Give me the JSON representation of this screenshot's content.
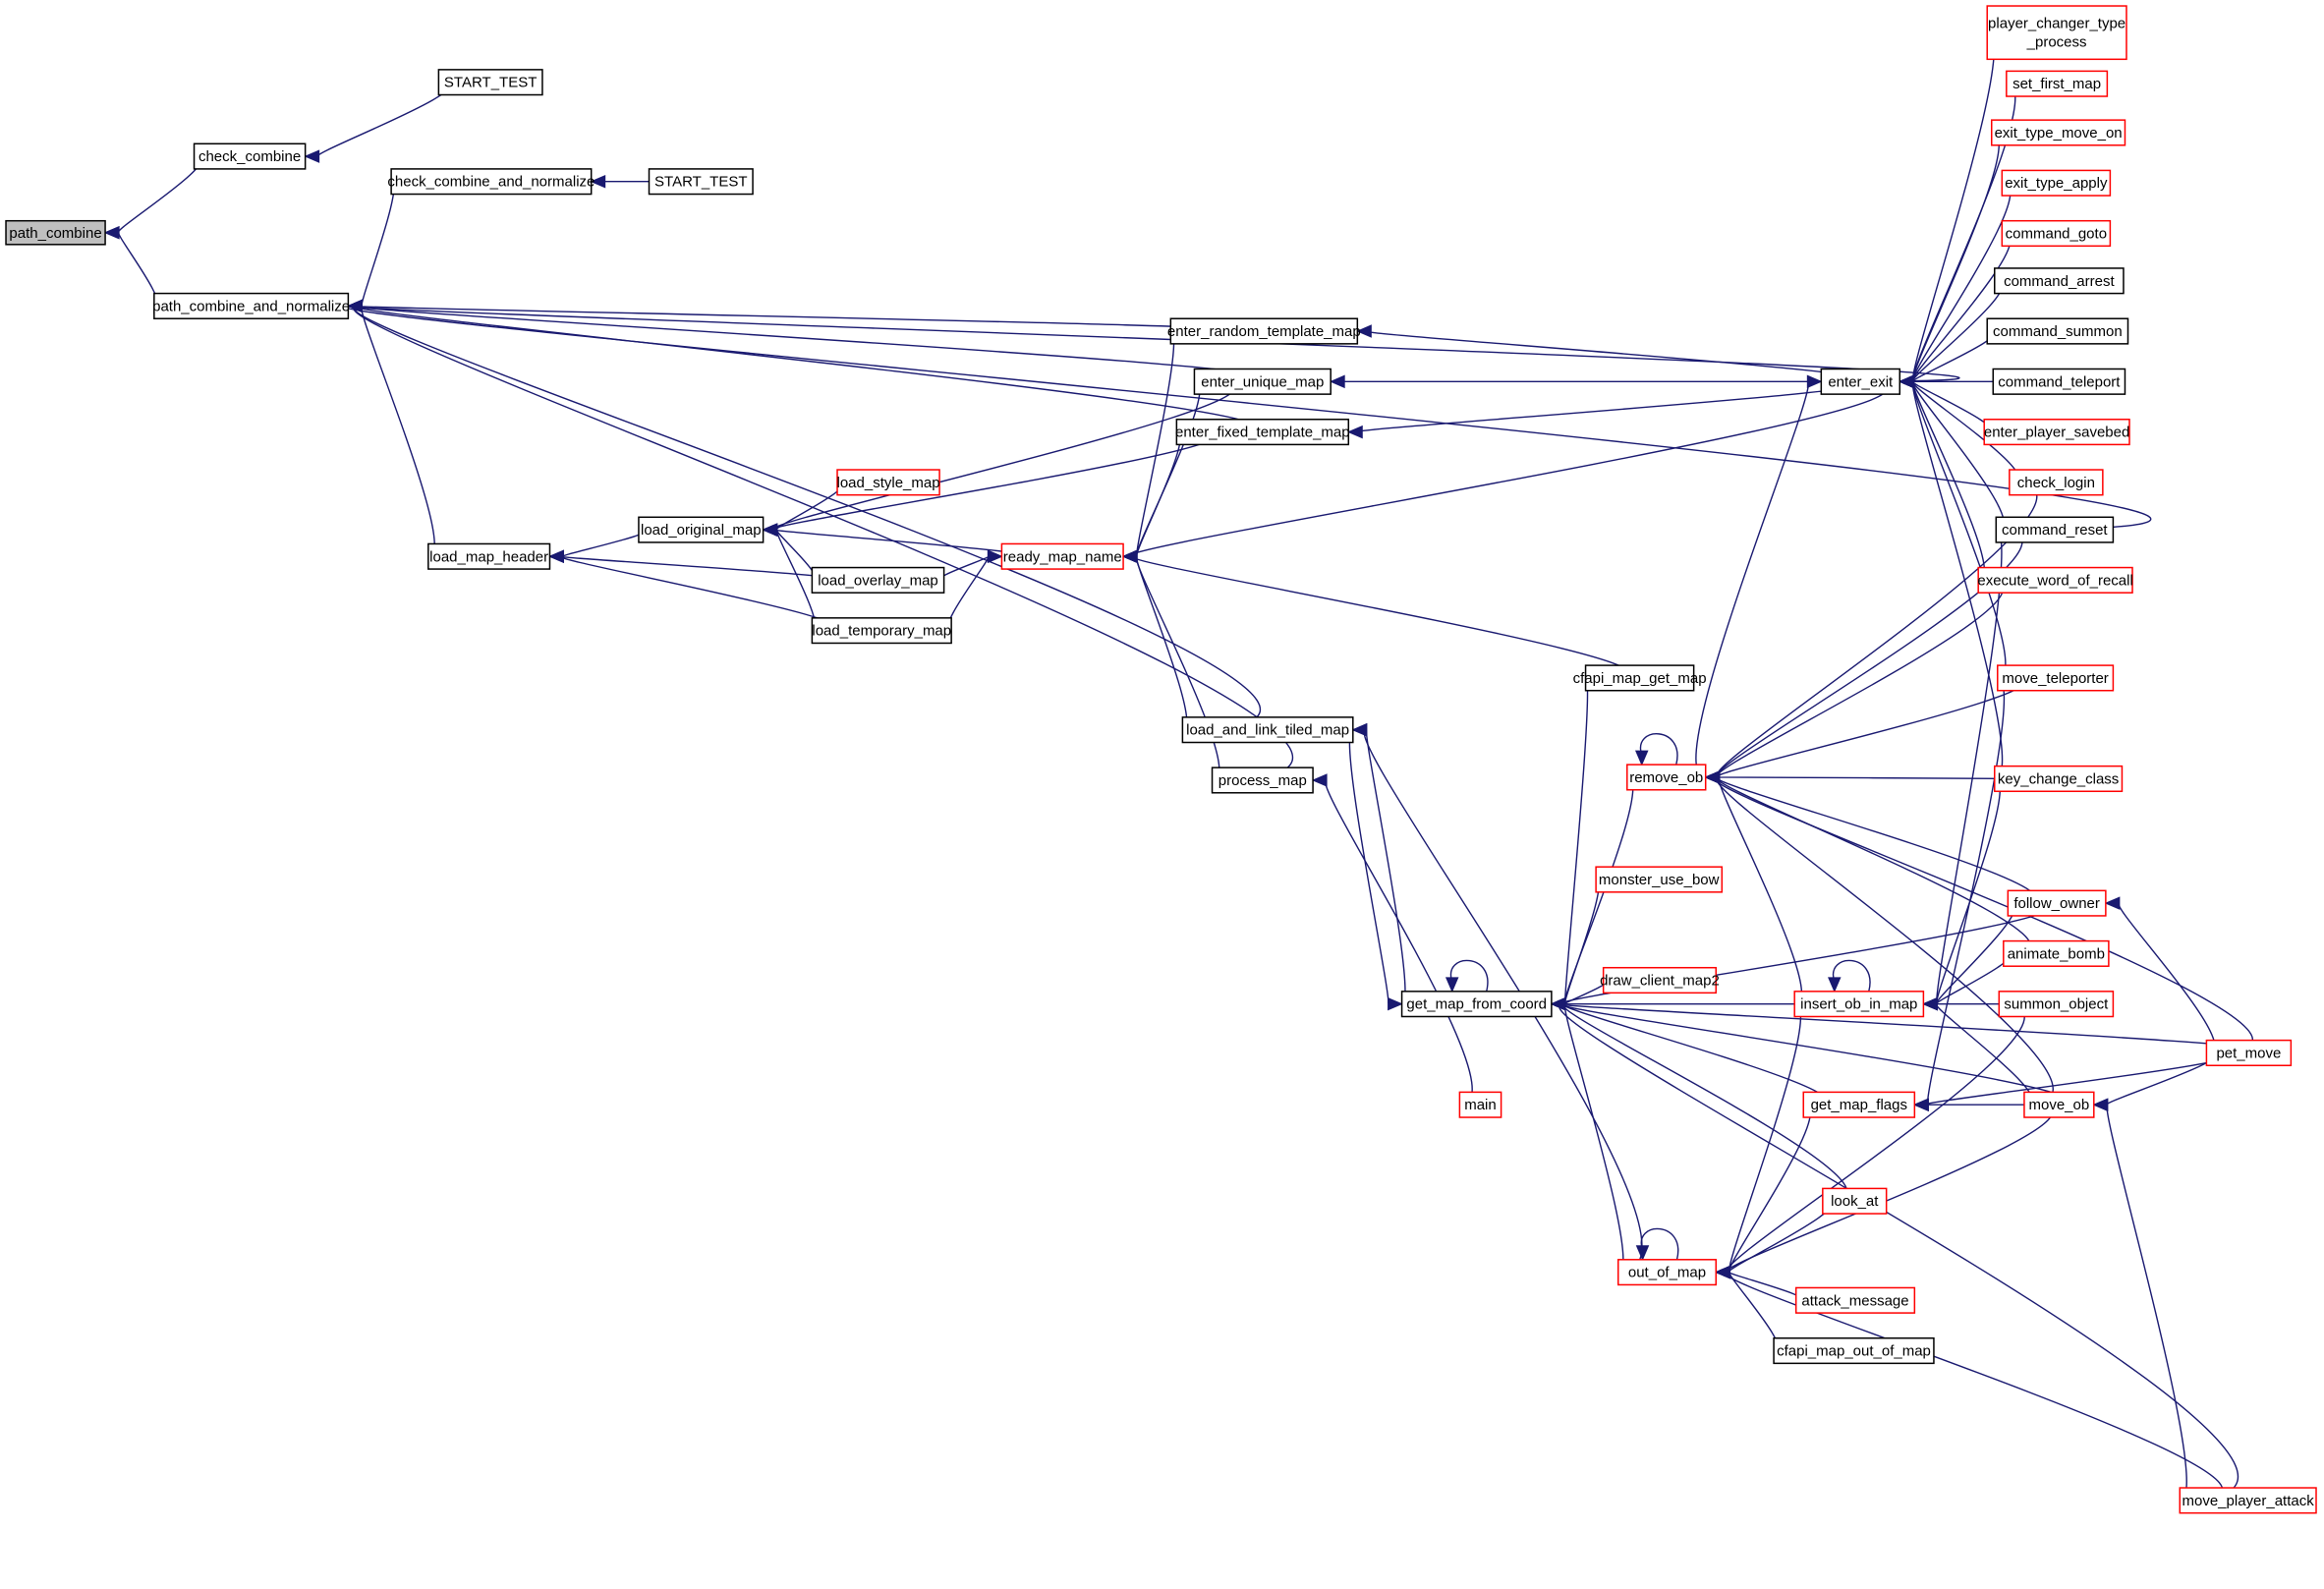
{
  "colors": {
    "edge": "#191970",
    "truncated_border": "#ff0000",
    "focus_fill": "#bfbfbf"
  },
  "nodes": [
    {
      "id": "path_combine",
      "label": "path_combine",
      "style": "highlight"
    },
    {
      "id": "check_combine",
      "label": "check_combine",
      "style": "black"
    },
    {
      "id": "start_test_a",
      "label": "START_TEST",
      "style": "black"
    },
    {
      "id": "pcan",
      "label": "path_combine_and_normalize",
      "style": "black"
    },
    {
      "id": "ccan",
      "label": "check_combine_and_normalize",
      "style": "black"
    },
    {
      "id": "start_test_b",
      "label": "START_TEST",
      "style": "black"
    },
    {
      "id": "load_map_header",
      "label": "load_map_header",
      "style": "black"
    },
    {
      "id": "load_original_map",
      "label": "load_original_map",
      "style": "black"
    },
    {
      "id": "load_style_map",
      "label": "load_style_map",
      "style": "red"
    },
    {
      "id": "load_overlay_map",
      "label": "load_overlay_map",
      "style": "black"
    },
    {
      "id": "load_temporary_map",
      "label": "load_temporary_map",
      "style": "black"
    },
    {
      "id": "ready_map_name",
      "label": "ready_map_name",
      "style": "red"
    },
    {
      "id": "enter_random_template_map",
      "label": "enter_random_template_map",
      "style": "black"
    },
    {
      "id": "enter_unique_map",
      "label": "enter_unique_map",
      "style": "black"
    },
    {
      "id": "enter_fixed_template_map",
      "label": "enter_fixed_template_map",
      "style": "black"
    },
    {
      "id": "load_and_link_tiled_map",
      "label": "load_and_link_tiled_map",
      "style": "black"
    },
    {
      "id": "process_map",
      "label": "process_map",
      "style": "black"
    },
    {
      "id": "main",
      "label": "main",
      "style": "red"
    },
    {
      "id": "cfapi_map_get_map",
      "label": "cfapi_map_get_map",
      "style": "black"
    },
    {
      "id": "enter_exit",
      "label": "enter_exit",
      "style": "black"
    },
    {
      "id": "player_changer_type_process",
      "label": "player_changer_type\n_process",
      "style": "red"
    },
    {
      "id": "set_first_map",
      "label": "set_first_map",
      "style": "red"
    },
    {
      "id": "exit_type_move_on",
      "label": "exit_type_move_on",
      "style": "red"
    },
    {
      "id": "exit_type_apply",
      "label": "exit_type_apply",
      "style": "red"
    },
    {
      "id": "command_goto",
      "label": "command_goto",
      "style": "red"
    },
    {
      "id": "command_arrest",
      "label": "command_arrest",
      "style": "black"
    },
    {
      "id": "command_summon",
      "label": "command_summon",
      "style": "black"
    },
    {
      "id": "command_teleport",
      "label": "command_teleport",
      "style": "black"
    },
    {
      "id": "enter_player_savebed",
      "label": "enter_player_savebed",
      "style": "red"
    },
    {
      "id": "check_login",
      "label": "check_login",
      "style": "red"
    },
    {
      "id": "command_reset",
      "label": "command_reset",
      "style": "black"
    },
    {
      "id": "execute_word_of_recall",
      "label": "execute_word_of_recall",
      "style": "red"
    },
    {
      "id": "move_teleporter",
      "label": "move_teleporter",
      "style": "red"
    },
    {
      "id": "key_change_class",
      "label": "key_change_class",
      "style": "red"
    },
    {
      "id": "follow_owner",
      "label": "follow_owner",
      "style": "red"
    },
    {
      "id": "animate_bomb",
      "label": "animate_bomb",
      "style": "red"
    },
    {
      "id": "summon_object",
      "label": "summon_object",
      "style": "red"
    },
    {
      "id": "pet_move",
      "label": "pet_move",
      "style": "red"
    },
    {
      "id": "move_ob",
      "label": "move_ob",
      "style": "red"
    },
    {
      "id": "move_player_attack",
      "label": "move_player_attack",
      "style": "red"
    },
    {
      "id": "remove_ob",
      "label": "remove_ob",
      "style": "red"
    },
    {
      "id": "monster_use_bow",
      "label": "monster_use_bow",
      "style": "red"
    },
    {
      "id": "draw_client_map2",
      "label": "draw_client_map2",
      "style": "red"
    },
    {
      "id": "get_map_from_coord",
      "label": "get_map_from_coord",
      "style": "black"
    },
    {
      "id": "insert_ob_in_map",
      "label": "insert_ob_in_map",
      "style": "red"
    },
    {
      "id": "get_map_flags",
      "label": "get_map_flags",
      "style": "red"
    },
    {
      "id": "look_at",
      "label": "look_at",
      "style": "red"
    },
    {
      "id": "out_of_map",
      "label": "out_of_map",
      "style": "red"
    },
    {
      "id": "attack_message",
      "label": "attack_message",
      "style": "red"
    },
    {
      "id": "cfapi_map_out_of_map",
      "label": "cfapi_map_out_of_map",
      "style": "black"
    }
  ],
  "edges": [
    [
      "check_combine",
      "path_combine"
    ],
    [
      "pcan",
      "path_combine"
    ],
    [
      "start_test_a",
      "check_combine"
    ],
    [
      "ccan",
      "pcan"
    ],
    [
      "start_test_b",
      "ccan"
    ],
    [
      "load_map_header",
      "pcan"
    ],
    [
      "enter_exit",
      "pcan"
    ],
    [
      "enter_random_template_map",
      "pcan"
    ],
    [
      "enter_unique_map",
      "pcan"
    ],
    [
      "enter_fixed_template_map",
      "pcan"
    ],
    [
      "command_reset",
      "pcan"
    ],
    [
      "load_and_link_tiled_map",
      "pcan"
    ],
    [
      "process_map",
      "pcan"
    ],
    [
      "load_original_map",
      "load_map_header"
    ],
    [
      "load_overlay_map",
      "load_map_header"
    ],
    [
      "load_temporary_map",
      "load_map_header"
    ],
    [
      "load_style_map",
      "load_original_map"
    ],
    [
      "load_overlay_map",
      "load_original_map"
    ],
    [
      "load_temporary_map",
      "load_original_map"
    ],
    [
      "ready_map_name",
      "load_original_map"
    ],
    [
      "enter_unique_map",
      "load_original_map"
    ],
    [
      "enter_fixed_template_map",
      "load_original_map"
    ],
    [
      "load_overlay_map",
      "ready_map_name"
    ],
    [
      "load_temporary_map",
      "ready_map_name"
    ],
    [
      "enter_random_template_map",
      "ready_map_name"
    ],
    [
      "enter_unique_map",
      "ready_map_name"
    ],
    [
      "enter_fixed_template_map",
      "ready_map_name"
    ],
    [
      "load_and_link_tiled_map",
      "ready_map_name"
    ],
    [
      "process_map",
      "ready_map_name"
    ],
    [
      "enter_exit",
      "ready_map_name"
    ],
    [
      "cfapi_map_get_map",
      "ready_map_name"
    ],
    [
      "enter_exit",
      "enter_random_template_map"
    ],
    [
      "enter_exit",
      "enter_unique_map"
    ],
    [
      "enter_exit",
      "enter_fixed_template_map"
    ],
    [
      "main",
      "process_map"
    ],
    [
      "get_map_from_coord",
      "load_and_link_tiled_map"
    ],
    [
      "out_of_map",
      "load_and_link_tiled_map"
    ],
    [
      "player_changer_type_process",
      "enter_exit"
    ],
    [
      "set_first_map",
      "enter_exit"
    ],
    [
      "exit_type_move_on",
      "enter_exit"
    ],
    [
      "exit_type_apply",
      "enter_exit"
    ],
    [
      "command_goto",
      "enter_exit"
    ],
    [
      "command_arrest",
      "enter_exit"
    ],
    [
      "command_summon",
      "enter_exit"
    ],
    [
      "command_teleport",
      "enter_exit"
    ],
    [
      "enter_player_savebed",
      "enter_exit"
    ],
    [
      "check_login",
      "enter_exit"
    ],
    [
      "command_reset",
      "enter_exit"
    ],
    [
      "execute_word_of_recall",
      "enter_exit"
    ],
    [
      "move_teleporter",
      "enter_exit"
    ],
    [
      "key_change_class",
      "enter_exit"
    ],
    [
      "remove_ob",
      "enter_exit"
    ],
    [
      "cfapi_map_get_map",
      "get_map_from_coord"
    ],
    [
      "load_and_link_tiled_map",
      "get_map_from_coord"
    ],
    [
      "remove_ob",
      "get_map_from_coord"
    ],
    [
      "monster_use_bow",
      "get_map_from_coord"
    ],
    [
      "draw_client_map2",
      "get_map_from_coord"
    ],
    [
      "insert_ob_in_map",
      "get_map_from_coord"
    ],
    [
      "get_map_flags",
      "get_map_from_coord"
    ],
    [
      "follow_owner",
      "get_map_from_coord"
    ],
    [
      "pet_move",
      "get_map_from_coord"
    ],
    [
      "look_at",
      "get_map_from_coord"
    ],
    [
      "out_of_map",
      "get_map_from_coord"
    ],
    [
      "move_ob",
      "get_map_from_coord"
    ],
    [
      "move_player_attack",
      "get_map_from_coord"
    ],
    [
      "get_map_from_coord",
      "get_map_from_coord"
    ],
    [
      "remove_ob",
      "remove_ob"
    ],
    [
      "command_reset",
      "remove_ob"
    ],
    [
      "execute_word_of_recall",
      "remove_ob"
    ],
    [
      "move_teleporter",
      "remove_ob"
    ],
    [
      "pet_move",
      "remove_ob"
    ],
    [
      "key_change_class",
      "remove_ob"
    ],
    [
      "follow_owner",
      "remove_ob"
    ],
    [
      "animate_bomb",
      "remove_ob"
    ],
    [
      "insert_ob_in_map",
      "remove_ob"
    ],
    [
      "move_ob",
      "remove_ob"
    ],
    [
      "check_login",
      "remove_ob"
    ],
    [
      "insert_ob_in_map",
      "insert_ob_in_map"
    ],
    [
      "animate_bomb",
      "insert_ob_in_map"
    ],
    [
      "summon_object",
      "insert_ob_in_map"
    ],
    [
      "move_ob",
      "insert_ob_in_map"
    ],
    [
      "command_reset",
      "insert_ob_in_map"
    ],
    [
      "key_change_class",
      "insert_ob_in_map"
    ],
    [
      "follow_owner",
      "insert_ob_in_map"
    ],
    [
      "pet_move",
      "get_map_flags"
    ],
    [
      "move_ob",
      "get_map_flags"
    ],
    [
      "move_teleporter",
      "get_map_flags"
    ],
    [
      "out_of_map",
      "out_of_map"
    ],
    [
      "get_map_flags",
      "out_of_map"
    ],
    [
      "insert_ob_in_map",
      "out_of_map"
    ],
    [
      "look_at",
      "out_of_map"
    ],
    [
      "attack_message",
      "out_of_map"
    ],
    [
      "cfapi_map_out_of_map",
      "out_of_map"
    ],
    [
      "move_player_attack",
      "out_of_map"
    ],
    [
      "move_ob",
      "out_of_map"
    ],
    [
      "summon_object",
      "out_of_map"
    ],
    [
      "pet_move",
      "move_ob"
    ],
    [
      "move_player_attack",
      "move_ob"
    ],
    [
      "pet_move",
      "follow_owner"
    ]
  ]
}
